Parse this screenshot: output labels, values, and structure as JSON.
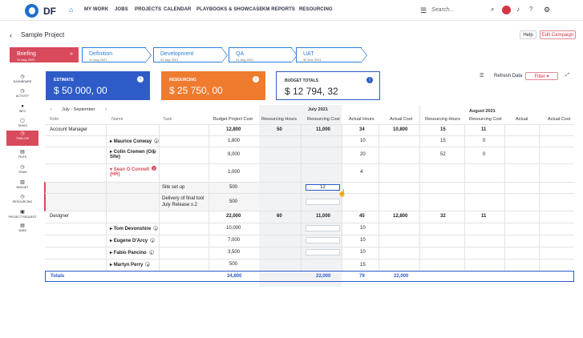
{
  "app": {
    "logo": "DF",
    "nav": [
      "MY WORK",
      "JOBS",
      "PROJECTS",
      "CALENDAR",
      "PLAYBOOKS & SHOWCASE",
      "KM REPORTS",
      "RESOURCING"
    ],
    "search_placeholder": "Search..."
  },
  "project": {
    "title": "Sample Project",
    "help": "Help",
    "edit": "Edit Campaign"
  },
  "stages": [
    {
      "name": "Briefing",
      "date": "31 Aug 2020"
    },
    {
      "name": "Definition",
      "date": "31 Aug 2021"
    },
    {
      "name": "Development",
      "date": "31 Aug 2021"
    },
    {
      "name": "QA",
      "date": "31 Aug 2021"
    },
    {
      "name": "UAT",
      "date": "30 Nov 2021"
    }
  ],
  "sidebar": [
    "DASHBOARD",
    "ACTIVITY",
    "INFO",
    "TASKS",
    "TIMELINE",
    "FILES",
    "TEAM",
    "BUDGET",
    "RESOURCING",
    "PROJECT REQUEST",
    "SUBS"
  ],
  "cards": {
    "estimate": {
      "label": "ESTIMATE",
      "value": "$ 50 000, 00"
    },
    "resourcing": {
      "label": "RESOURCING",
      "value": "$ 25 750, 00"
    },
    "budget": {
      "label": "BUDGET TOTALS",
      "value": "$ 12 794, 32"
    }
  },
  "tools": {
    "refresh": "Refresh Data",
    "filter": "Filter"
  },
  "range": "July - September",
  "months": [
    "July 2021",
    "August 2021"
  ],
  "headers": [
    "Role",
    "Name",
    "Task",
    "Budget Project Cost",
    "Resourcing Hours",
    "Resourcing Cost",
    "Actual Hours",
    "Actual Cost",
    "Resourcing Hours",
    "Resourcing Cost",
    "Actual",
    "Actual Cost"
  ],
  "roles": {
    "am": "Account Manager",
    "designer": "Designer"
  },
  "rows": {
    "am_total": [
      "12,800",
      "50",
      "11,000",
      "34",
      "10,800",
      "15",
      "11"
    ],
    "maurice": {
      "name": "Maurice Conway",
      "badge": "2",
      "cost": "1,800",
      "actual": "10",
      "aug_h": "15",
      "aug_c": "0"
    },
    "colin": {
      "name": "Colin Cremen (On-Site)",
      "badge": "11",
      "cost": "9,000",
      "actual": "20",
      "aug_h": "52",
      "aug_c": "0"
    },
    "sean": {
      "name": "Sean O Connell (HR)",
      "badge": "2",
      "cost": "1,000",
      "actual": "4"
    },
    "task1": {
      "task": "Site set up",
      "cost": "500",
      "input": "12"
    },
    "task2": {
      "task": "Delivery of final tool July Release x.2",
      "cost": "500"
    },
    "designer_total": [
      "22,000",
      "60",
      "11,000",
      "45",
      "12,800",
      "32",
      "11"
    ],
    "tom": {
      "name": "Tom Devonshire",
      "badge": "1",
      "cost": "10,000",
      "actual": "10"
    },
    "eugene": {
      "name": "Eugene D'Arcy",
      "badge": "1",
      "cost": "7,000",
      "actual": "10"
    },
    "fabio": {
      "name": "Fabio Pancino",
      "badge": "1",
      "cost": "3,500",
      "actual": "10"
    },
    "martyn": {
      "name": "Martyn Perry",
      "badge": "4",
      "cost": "500",
      "actual": "15"
    }
  },
  "totals": {
    "label": "Totals",
    "cost": "34,800",
    "res_cost": "22,000",
    "actual_hours": "79",
    "actual_cost": "22,000"
  }
}
